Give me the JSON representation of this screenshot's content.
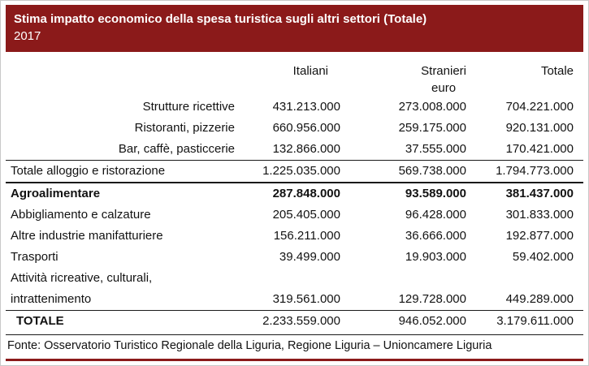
{
  "header": {
    "title": "Stima impatto economico della spesa turistica sugli altri settori (Totale)",
    "year": "2017"
  },
  "table": {
    "columns": {
      "italiani": "Italiani",
      "stranieri": "Stranieri",
      "totale": "Totale"
    },
    "unit": "euro",
    "rows": [
      {
        "label": "Strutture ricettive",
        "italiani": "431.213.000",
        "stranieri": "273.008.000",
        "totale": "704.221.000"
      },
      {
        "label": "Ristoranti, pizzerie",
        "italiani": "660.956.000",
        "stranieri": "259.175.000",
        "totale": "920.131.000"
      },
      {
        "label": "Bar, caffè, pasticcerie",
        "italiani": "132.866.000",
        "stranieri": "37.555.000",
        "totale": "170.421.000"
      },
      {
        "label": "Totale alloggio e ristorazione",
        "italiani": "1.225.035.000",
        "stranieri": "569.738.000",
        "totale": "1.794.773.000"
      },
      {
        "label": "Agroalimentare",
        "italiani": "287.848.000",
        "stranieri": "93.589.000",
        "totale": "381.437.000"
      },
      {
        "label": "Abbigliamento e calzature",
        "italiani": "205.405.000",
        "stranieri": "96.428.000",
        "totale": "301.833.000"
      },
      {
        "label": "Altre industrie manifatturiere",
        "italiani": "156.211.000",
        "stranieri": "36.666.000",
        "totale": "192.877.000"
      },
      {
        "label": "Trasporti",
        "italiani": "39.499.000",
        "stranieri": "19.903.000",
        "totale": "59.402.000"
      },
      {
        "label": "Attività ricreative, culturali,",
        "label2": "intrattenimento",
        "italiani": "319.561.000",
        "stranieri": "129.728.000",
        "totale": "449.289.000"
      },
      {
        "label": "TOTALE",
        "italiani": "2.233.559.000",
        "stranieri": "946.052.000",
        "totale": "3.179.611.000"
      }
    ]
  },
  "footer": {
    "source": "Fonte: Osservatorio Turistico Regionale della Liguria, Regione Liguria – Unioncamere Liguria"
  },
  "colors": {
    "header_bg": "#8B1A1A",
    "header_text": "#ffffff",
    "rule_color": "#1a1a1a"
  }
}
